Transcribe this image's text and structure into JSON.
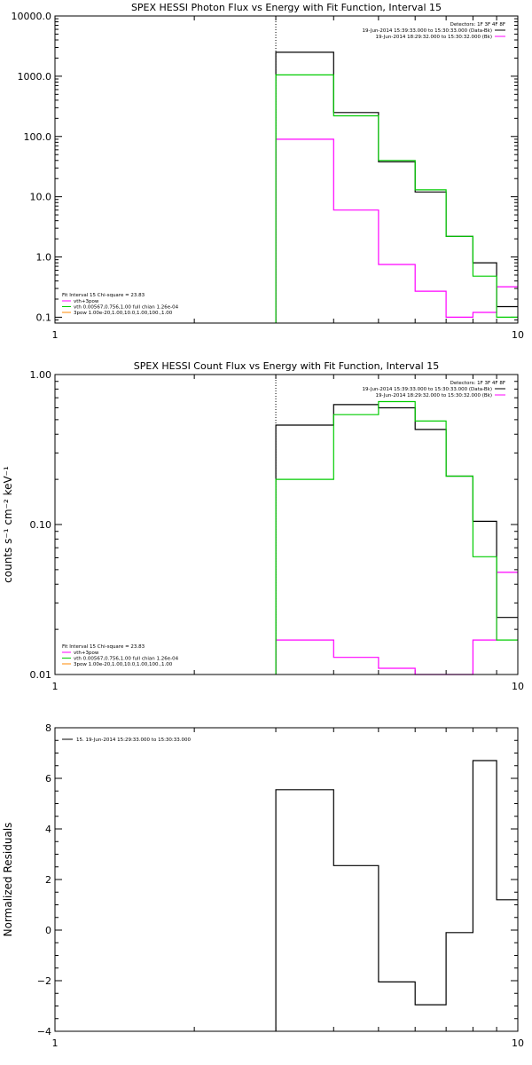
{
  "chart_data": [
    {
      "type": "line",
      "title": "SPEX HESSI Photon Flux vs Energy with Fit Function, Interval 15",
      "xlabel": "",
      "ylabel": "",
      "xscale": "log",
      "yscale": "log",
      "xlim": [
        1,
        10
      ],
      "ylim": [
        0.08,
        10000
      ],
      "x_ticks": [
        "1",
        "10"
      ],
      "y_ticks": [
        {
          "v": 10000,
          "label": "10000.0"
        },
        {
          "v": 1000,
          "label": "1000.0"
        },
        {
          "v": 100,
          "label": "100.0"
        },
        {
          "v": 10,
          "label": "10.0"
        },
        {
          "v": 1,
          "label": "1.0"
        },
        {
          "v": 0.1,
          "label": "0.1"
        }
      ],
      "vline_x": 3.0,
      "bin_edges": [
        3.0,
        4.0,
        5.0,
        6.0,
        7.0,
        8.0,
        9.0,
        10.0
      ],
      "series": [
        {
          "name": "",
          "color": "#000000",
          "values": [
            2500,
            250,
            38,
            12,
            2.2,
            0.8,
            0.15
          ]
        },
        {
          "name": "vth+3pow",
          "color": "#ff00ff",
          "values": [
            90,
            6,
            0.75,
            0.27,
            0.1,
            0.12,
            0.32
          ]
        },
        {
          "name": "vth 0.00567,0.756,1.00  full chian 1.26e-04",
          "color": "#00cc00",
          "values": [
            1050,
            220,
            40,
            13,
            2.2,
            0.48,
            0.1
          ]
        }
      ],
      "legend": {
        "position": "top-right",
        "header": "Detectors: 1F 3F 4F 8F",
        "entries": [
          {
            "label": "19-Jun-2014 15:39:33.000 to 15:30:33.000 (Data-Bk)",
            "color": "#000000"
          },
          {
            "label": "19-Jun-2014 18:29:32.000 to 15:30:32.000 (Bk)",
            "color": "#ff00ff"
          }
        ]
      },
      "fit_legend": {
        "position": "bottom-left",
        "header": "Fit Interval 15   Chi-square = 23.83",
        "entries": [
          {
            "label": "vth+3pow",
            "color": "#ff00ff"
          },
          {
            "label": "vth 0.00567,0.756,1.00  full chian 1.26e-04",
            "color": "#00cc00"
          },
          {
            "label": "3pow 1.00e-20,1.00,10.0,1.00,100.,1.00",
            "color": "#ff8800"
          }
        ]
      }
    },
    {
      "type": "line",
      "title": "SPEX HESSI Count Flux vs Energy with Fit Function, Interval 15",
      "xlabel": "",
      "ylabel": "counts s⁻¹ cm⁻² keV⁻¹",
      "xscale": "log",
      "yscale": "log",
      "xlim": [
        1,
        10
      ],
      "ylim": [
        0.01,
        1.0
      ],
      "x_ticks": [
        "1",
        "10"
      ],
      "y_ticks": [
        {
          "v": 1.0,
          "label": "1.00"
        },
        {
          "v": 0.1,
          "label": "0.10"
        },
        {
          "v": 0.01,
          "label": "0.01"
        }
      ],
      "vline_x": 3.0,
      "bin_edges": [
        3.0,
        4.0,
        5.0,
        6.0,
        7.0,
        8.0,
        9.0,
        10.0
      ],
      "series": [
        {
          "name": "",
          "color": "#000000",
          "values": [
            0.46,
            0.63,
            0.6,
            0.43,
            0.21,
            0.105,
            0.024
          ]
        },
        {
          "name": "",
          "color": "#ff00ff",
          "values": [
            0.017,
            0.013,
            0.011,
            0.0099,
            0.0095,
            0.017,
            0.048
          ]
        },
        {
          "name": "",
          "color": "#00cc00",
          "values": [
            0.2,
            0.54,
            0.66,
            0.49,
            0.21,
            0.061,
            0.017
          ]
        }
      ],
      "legend": {
        "position": "top-right",
        "header": "Detectors: 1F 3F 4F 8F",
        "entries": [
          {
            "label": "19-Jun-2014 15:39:33.000 to 15:30:33.000 (Data-Bk)",
            "color": "#000000"
          },
          {
            "label": "19-Jun-2014 18:29:32.000 to 15:30:32.000 (Bk)",
            "color": "#ff00ff"
          }
        ]
      },
      "fit_legend": {
        "position": "bottom-left",
        "header": "Fit Interval 15   Chi-square = 23.83",
        "entries": [
          {
            "label": "vth+3pow",
            "color": "#ff00ff"
          },
          {
            "label": "vth 0.00567,0.756,1.00  full chian 1.26e-04",
            "color": "#00cc00"
          },
          {
            "label": "3pow 1.00e-20,1.00,10.0,1.00,100.,1.00",
            "color": "#ff8800"
          }
        ]
      }
    },
    {
      "type": "line",
      "title": "",
      "xlabel": "",
      "ylabel": "Normalized Residuals",
      "xscale": "log",
      "yscale": "linear",
      "xlim": [
        1,
        10
      ],
      "ylim": [
        -4,
        8
      ],
      "x_ticks": [
        "1",
        "10"
      ],
      "y_ticks": [
        {
          "v": 8,
          "label": "8"
        },
        {
          "v": 6,
          "label": "6"
        },
        {
          "v": 4,
          "label": "4"
        },
        {
          "v": 2,
          "label": "2"
        },
        {
          "v": 0,
          "label": "0"
        },
        {
          "v": -2,
          "label": "−2"
        },
        {
          "v": -4,
          "label": "−4"
        }
      ],
      "bin_edges": [
        3.0,
        4.0,
        5.0,
        6.0,
        7.0,
        8.0,
        9.0,
        10.0
      ],
      "series": [
        {
          "name": "15. 19-Jun-2014 15:29:33.000 to 15:30:33.000",
          "color": "#000000",
          "values": [
            5.55,
            2.55,
            -2.05,
            -2.95,
            -0.1,
            6.7,
            1.2
          ]
        }
      ],
      "legend": {
        "position": "top-left",
        "header": "",
        "entries": [
          {
            "label": "15. 19-Jun-2014 15:29:33.000 to 15:30:33.000",
            "color": "#000000"
          }
        ]
      }
    }
  ]
}
